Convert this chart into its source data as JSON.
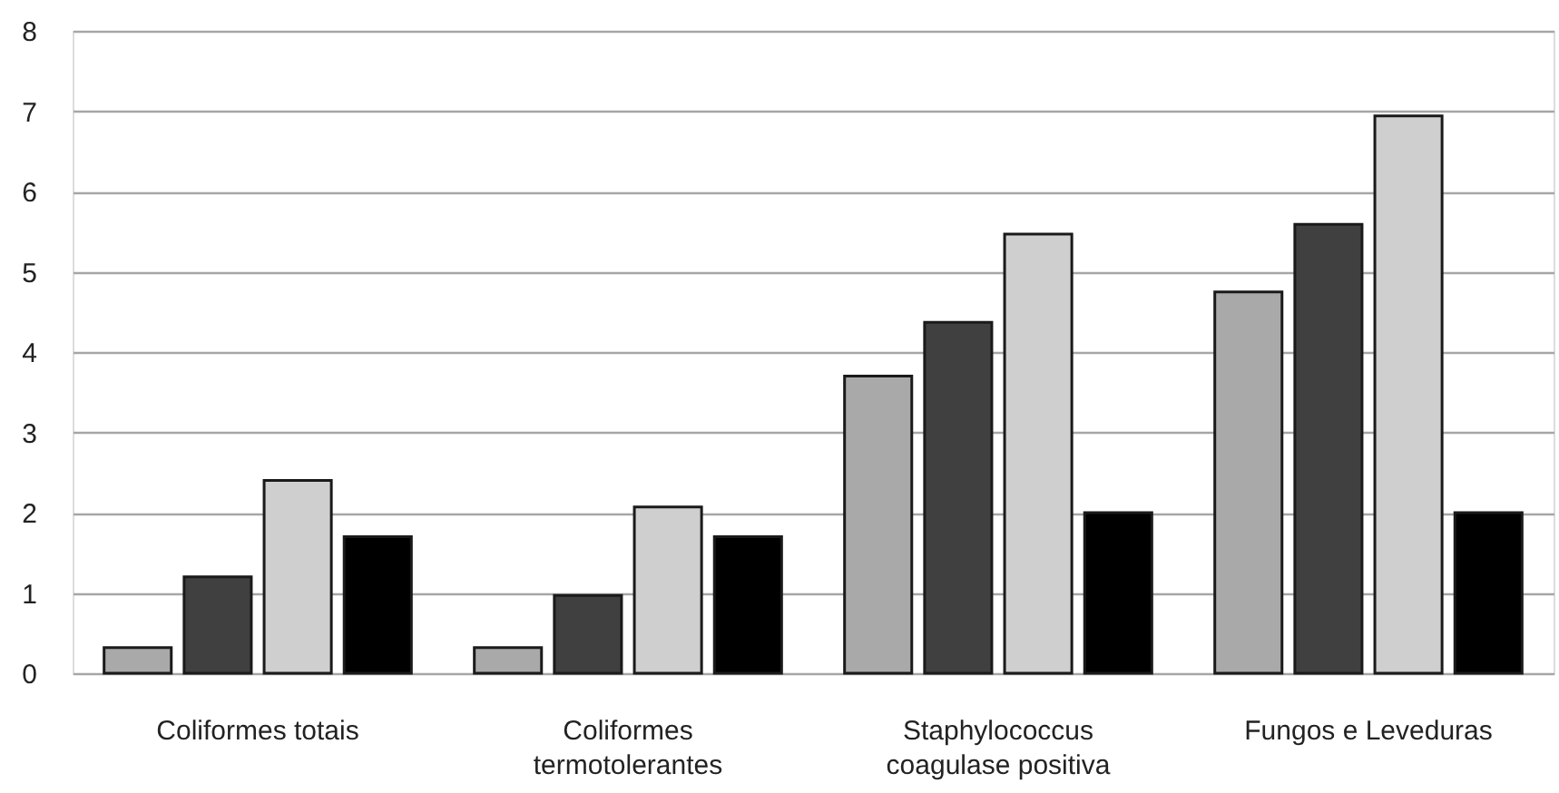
{
  "chart_data": {
    "type": "bar",
    "categories": [
      "Coliformes totais",
      "Coliformes termotolerantes",
      "Staphylococcus coagulase positiva",
      "Fungos e Leveduras"
    ],
    "series": [
      {
        "color": "#a9a9a9",
        "values": [
          0.32,
          0.32,
          3.7,
          4.75
        ]
      },
      {
        "color": "#404040",
        "values": [
          1.2,
          0.97,
          4.37,
          5.59
        ]
      },
      {
        "color": "#cfcfcf",
        "values": [
          2.4,
          2.07,
          5.47,
          6.94
        ]
      },
      {
        "color": "#000000",
        "values": [
          1.7,
          1.7,
          2.0,
          2.0
        ]
      }
    ],
    "ylim": [
      0,
      8
    ],
    "yticks": [
      0,
      1,
      2,
      3,
      4,
      5,
      6,
      7,
      8
    ],
    "grid": "y"
  }
}
